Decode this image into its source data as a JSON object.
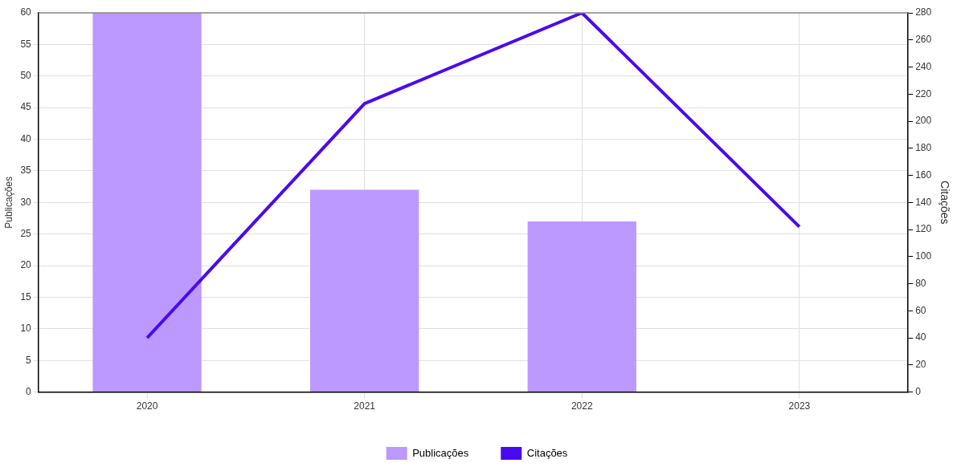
{
  "chart_data": {
    "type": "bar",
    "categories": [
      "2020",
      "2021",
      "2022",
      "2023"
    ],
    "series": [
      {
        "name": "Publicações",
        "color": "#bb99ff",
        "values": [
          60,
          32,
          27,
          null
        ]
      },
      {
        "name": "Citações",
        "type": "line",
        "axis": "y2",
        "color": "#4a0aef",
        "values": [
          40,
          213,
          280,
          122
        ]
      }
    ],
    "ylabel": "Publicações",
    "y2label": "Citações",
    "ylim": [
      0,
      60
    ],
    "yticks": [
      0,
      5,
      10,
      15,
      20,
      25,
      30,
      35,
      40,
      45,
      50,
      55,
      60
    ],
    "y2lim": [
      0,
      280
    ],
    "y2ticks": [
      0,
      20,
      40,
      60,
      80,
      100,
      120,
      140,
      160,
      180,
      200,
      220,
      240,
      260,
      280
    ],
    "grid": true,
    "legend": "bottom",
    "marker": "none",
    "line_style": "solid"
  }
}
